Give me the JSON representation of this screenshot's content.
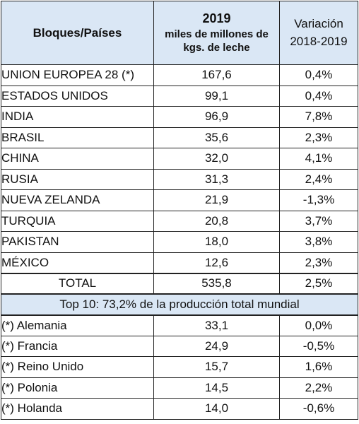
{
  "header": {
    "col_block": "Bloques/Países",
    "col_year": "2019",
    "col_unit_line1": "miles de millones de",
    "col_unit_line2": "kgs. de leche",
    "col_var_line1": "Variación",
    "col_var_line2": "2018-2019"
  },
  "rows": [
    {
      "name": "UNION EUROPEA 28 (*)",
      "value": "167,6",
      "variation": "0,4%"
    },
    {
      "name": "ESTADOS UNIDOS",
      "value": "99,1",
      "variation": "0,4%"
    },
    {
      "name": "INDIA",
      "value": "96,9",
      "variation": "7,8%"
    },
    {
      "name": "BRASIL",
      "value": "35,6",
      "variation": "2,3%"
    },
    {
      "name": "CHINA",
      "value": "32,0",
      "variation": "4,1%"
    },
    {
      "name": "RUSIA",
      "value": "31,3",
      "variation": "2,4%"
    },
    {
      "name": "NUEVA ZELANDA",
      "value": "21,9",
      "variation": "-1,3%"
    },
    {
      "name": "TURQUIA",
      "value": "20,8",
      "variation": "3,7%"
    },
    {
      "name": "PAKISTAN",
      "value": "18,0",
      "variation": "3,8%"
    },
    {
      "name": "MÉXICO",
      "value": "12,6",
      "variation": "2,3%"
    }
  ],
  "total": {
    "name": "TOTAL",
    "value": "535,8",
    "variation": "2,5%"
  },
  "note": "Top 10: 73,2% de la producción total mundial",
  "eu_rows": [
    {
      "name": "(*) Alemania",
      "value": "33,1",
      "variation": "0,0%"
    },
    {
      "name": "(*) Francia",
      "value": "24,9",
      "variation": "-0,5%"
    },
    {
      "name": "(*) Reino Unido",
      "value": "15,7",
      "variation": "1,6%"
    },
    {
      "name": "(*) Polonia",
      "value": "14,5",
      "variation": "2,2%"
    },
    {
      "name": "(*) Holanda",
      "value": "14,0",
      "variation": "-0,6%"
    }
  ],
  "colors": {
    "header_bg": "#dae7f5",
    "border": "#222222"
  }
}
